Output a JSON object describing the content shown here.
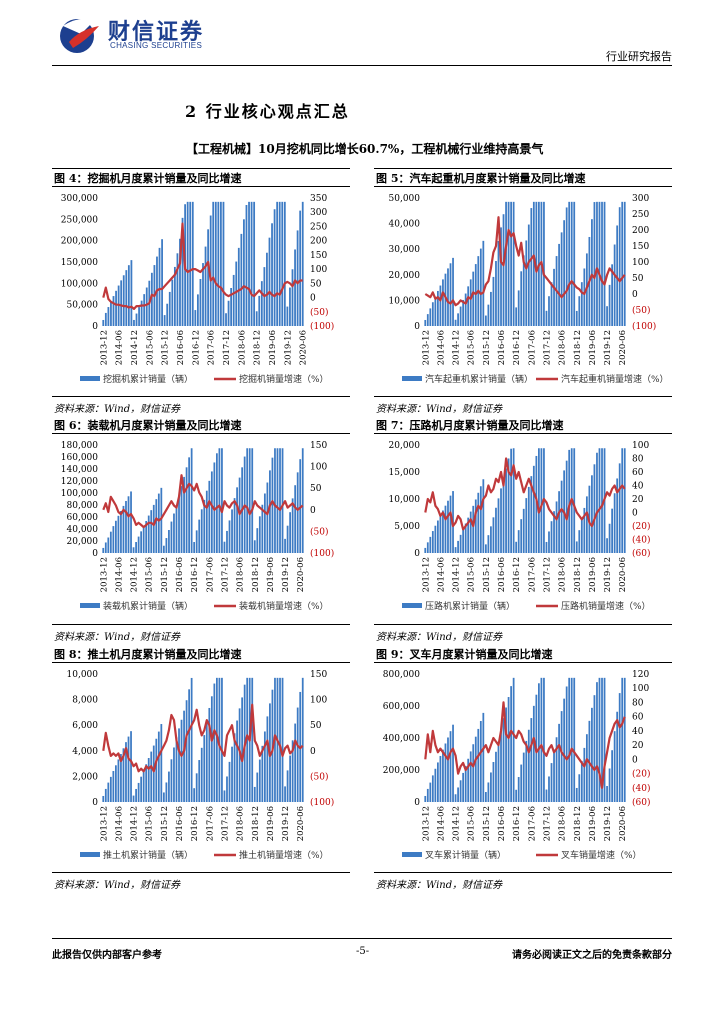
{
  "header": {
    "logo_cn": "财信证券",
    "logo_en": "CHASING SECURITIES",
    "report_type": "行业研究报告"
  },
  "section_title": "2 行业核心观点汇总",
  "headline": "【工程机械】10月挖机同比增长60.7%，工程机械行业维持高景气",
  "colors": {
    "bar": "#3d7bc4",
    "line": "#c0393b",
    "brand": "#1d3f8f"
  },
  "chart_data": [
    {
      "type": "bar+line",
      "title": "图 4：挖掘机月度累计销量及同比增速",
      "source": "资料来源：Wind，财信证券",
      "left_ticks": [
        "300,000",
        "250,000",
        "200,000",
        "150,000",
        "100,000",
        "50,000",
        "0"
      ],
      "right_ticks": [
        "350",
        "300",
        "250",
        "200",
        "150",
        "100",
        "50",
        "0",
        "(50)",
        "(100)"
      ],
      "ylim_left": [
        0,
        300000
      ],
      "ylim_right": [
        -100,
        350
      ],
      "x_ticks": [
        "2013-12",
        "2014-06",
        "2014-12",
        "2015-06",
        "2015-12",
        "2016-06",
        "2016-12",
        "2017-06",
        "2017-12",
        "2018-06",
        "2018-12",
        "2019-06",
        "2019-12",
        "2020-06"
      ],
      "legend": [
        "挖掘机累计销量（辆）",
        "挖掘机销量增速（%）"
      ],
      "line_values": [
        0,
        35,
        -5,
        -15,
        -20,
        -25,
        -25,
        -28,
        -30,
        -30,
        -35,
        -32,
        -40,
        -30,
        -30,
        -28,
        -28,
        -25,
        -20,
        10,
        5,
        25,
        30,
        30,
        40,
        50,
        60,
        70,
        80,
        100,
        120,
        260,
        100,
        90,
        95,
        100,
        100,
        95,
        90,
        100,
        110,
        125,
        60,
        70,
        50,
        40,
        35,
        20,
        10,
        5,
        10,
        15,
        20,
        25,
        30,
        40,
        35,
        30,
        10,
        5,
        15,
        25,
        15,
        5,
        10,
        20,
        10,
        5,
        15,
        10,
        30,
        50,
        55,
        50,
        40,
        60,
        50,
        60,
        60
      ]
    },
    {
      "type": "bar+line",
      "title": "图 5：汽车起重机月度累计销量及同比增速",
      "source": "资料来源：Wind，财信证券",
      "left_ticks": [
        "50,000",
        "40,000",
        "30,000",
        "20,000",
        "10,000",
        "0"
      ],
      "right_ticks": [
        "300",
        "250",
        "200",
        "150",
        "100",
        "50",
        "0",
        "(50)",
        "(100)"
      ],
      "ylim_left": [
        0,
        50000
      ],
      "ylim_right": [
        -100,
        300
      ],
      "x_ticks": [
        "2013-12",
        "2014-06",
        "2014-12",
        "2015-06",
        "2015-12",
        "2016-06",
        "2016-12",
        "2017-06",
        "2017-12",
        "2018-06",
        "2018-12",
        "2019-06",
        "2019-12",
        "2020-06"
      ],
      "legend": [
        "汽车起重机累计销量（辆）",
        "汽车起重机销量增速（%）"
      ],
      "line_values": [
        0,
        -5,
        -10,
        5,
        -15,
        -10,
        -20,
        5,
        -10,
        -25,
        -30,
        -20,
        -35,
        -30,
        -20,
        -25,
        -30,
        -10,
        -15,
        5,
        0,
        10,
        0,
        5,
        30,
        40,
        80,
        130,
        150,
        240,
        100,
        90,
        150,
        200,
        180,
        190,
        150,
        120,
        160,
        100,
        80,
        100,
        110,
        120,
        70,
        90,
        100,
        60,
        50,
        40,
        30,
        20,
        10,
        0,
        -10,
        0,
        10,
        30,
        40,
        30,
        20,
        15,
        5,
        0,
        20,
        40,
        60,
        50,
        80,
        60,
        40,
        30,
        60,
        80,
        70,
        60,
        50,
        40,
        50,
        60
      ]
    },
    {
      "type": "bar+line",
      "title": "图 6：装载机月度累计销量及同比增速",
      "source": "资料来源：Wind，财信证券",
      "left_ticks": [
        "180,000",
        "160,000",
        "140,000",
        "120,000",
        "100,000",
        "80,000",
        "60,000",
        "40,000",
        "20,000",
        "0"
      ],
      "right_ticks": [
        "150",
        "100",
        "50",
        "0",
        "(50)",
        "(100)"
      ],
      "ylim_left": [
        0,
        180000
      ],
      "ylim_right": [
        -100,
        150
      ],
      "x_ticks": [
        "2013-12",
        "2014-06",
        "2014-12",
        "2015-06",
        "2015-12",
        "2016-06",
        "2016-12",
        "2017-06",
        "2017-12",
        "2018-06",
        "2018-12",
        "2019-06",
        "2019-12",
        "2020-06"
      ],
      "legend": [
        "装载机累计销量（辆）",
        "装载机销量增速（%）"
      ],
      "line_values": [
        0,
        15,
        -5,
        30,
        20,
        10,
        -5,
        -10,
        0,
        -5,
        -15,
        -10,
        -20,
        -35,
        -30,
        -35,
        -40,
        -35,
        -30,
        -30,
        -35,
        -20,
        -25,
        -20,
        -10,
        0,
        10,
        20,
        10,
        5,
        30,
        80,
        40,
        50,
        60,
        55,
        45,
        60,
        40,
        30,
        10,
        5,
        20,
        10,
        0,
        5,
        10,
        -5,
        20,
        10,
        5,
        15,
        20,
        10,
        -10,
        0,
        10,
        5,
        -10,
        0,
        20,
        10,
        5,
        0,
        -5,
        -10,
        10,
        20,
        10,
        5,
        0,
        10,
        20,
        5,
        10,
        15,
        5,
        0,
        5,
        10
      ]
    },
    {
      "type": "bar+line",
      "title": "图 7：压路机月度累计销量及同比增速",
      "source": "资料来源：Wind，财信证券",
      "left_ticks": [
        "20,000",
        "15,000",
        "10,000",
        "5,000",
        "0"
      ],
      "right_ticks": [
        "100",
        "80",
        "60",
        "40",
        "20",
        "0",
        "(20)",
        "(40)",
        "(60)"
      ],
      "ylim_left": [
        0,
        20000
      ],
      "ylim_right": [
        -60,
        100
      ],
      "x_ticks": [
        "2013-12",
        "2014-06",
        "2014-12",
        "2015-06",
        "2015-12",
        "2016-06",
        "2016-12",
        "2017-06",
        "2017-12",
        "2018-06",
        "2018-12",
        "2019-06",
        "2019-12",
        "2020-06"
      ],
      "legend": [
        "压路机累计销量（辆）",
        "压路机销量增速（%）"
      ],
      "line_values": [
        0,
        20,
        15,
        30,
        10,
        5,
        -5,
        0,
        -10,
        -5,
        0,
        -20,
        -15,
        -5,
        -10,
        -25,
        -20,
        -15,
        -10,
        -20,
        0,
        10,
        5,
        20,
        25,
        40,
        30,
        35,
        50,
        45,
        60,
        40,
        80,
        60,
        55,
        70,
        50,
        60,
        45,
        30,
        40,
        50,
        40,
        30,
        20,
        0,
        10,
        20,
        15,
        5,
        0,
        -5,
        -10,
        0,
        5,
        0,
        -10,
        10,
        20,
        10,
        0,
        -5,
        -10,
        -5,
        0,
        -15,
        -20,
        -10,
        0,
        5,
        10,
        20,
        30,
        25,
        35,
        40,
        30,
        35,
        40,
        35
      ]
    },
    {
      "type": "bar+line",
      "title": "图 8：推土机月度累计销量及同比增速",
      "source": "资料来源：Wind，财信证券",
      "left_ticks": [
        "10,000",
        "8,000",
        "6,000",
        "4,000",
        "2,000",
        "0"
      ],
      "right_ticks": [
        "150",
        "100",
        "50",
        "0",
        "(50)",
        "(100)"
      ],
      "ylim_left": [
        0,
        10000
      ],
      "ylim_right": [
        -100,
        150
      ],
      "x_ticks": [
        "2013-12",
        "2014-06",
        "2014-12",
        "2015-06",
        "2015-12",
        "2016-06",
        "2016-12",
        "2017-06",
        "2017-12",
        "2018-06",
        "2018-12",
        "2019-06",
        "2019-12",
        "2020-06"
      ],
      "legend": [
        "推土机累计销量（辆）",
        "推土机销量增速（%）"
      ],
      "line_values": [
        0,
        35,
        10,
        -10,
        -5,
        -10,
        -5,
        -20,
        -10,
        5,
        -15,
        -20,
        -30,
        -25,
        -40,
        -35,
        -40,
        -30,
        -35,
        -30,
        -40,
        -20,
        -10,
        0,
        10,
        20,
        40,
        70,
        60,
        20,
        0,
        -10,
        0,
        30,
        40,
        50,
        60,
        80,
        50,
        30,
        40,
        60,
        50,
        20,
        40,
        30,
        10,
        0,
        -10,
        30,
        40,
        50,
        20,
        10,
        0,
        -20,
        10,
        30,
        20,
        90,
        20,
        10,
        -10,
        0,
        10,
        20,
        -10,
        0,
        30,
        20,
        10,
        -10,
        5,
        10,
        -5,
        0,
        20,
        10,
        5,
        10
      ]
    },
    {
      "type": "bar+line",
      "title": "图 9：叉车月度累计销量及同比增速",
      "source": "资料来源：Wind，财信证券",
      "left_ticks": [
        "800,000",
        "600,000",
        "400,000",
        "200,000",
        "0"
      ],
      "right_ticks": [
        "120",
        "100",
        "80",
        "60",
        "40",
        "20",
        "0",
        "(20)",
        "(40)",
        "(60)"
      ],
      "ylim_left": [
        0,
        800000
      ],
      "ylim_right": [
        -60,
        120
      ],
      "x_ticks": [
        "2013-12",
        "2014-06",
        "2014-12",
        "2015-06",
        "2015-12",
        "2016-06",
        "2016-12",
        "2017-06",
        "2017-12",
        "2018-06",
        "2018-12",
        "2019-06",
        "2019-12",
        "2020-06"
      ],
      "legend": [
        "叉车累计销量（辆）",
        "叉车销量增速（%）"
      ],
      "line_values": [
        0,
        35,
        10,
        40,
        20,
        10,
        15,
        10,
        5,
        0,
        10,
        15,
        5,
        -20,
        -10,
        -5,
        -15,
        -10,
        -5,
        -10,
        0,
        5,
        10,
        15,
        20,
        10,
        20,
        30,
        25,
        20,
        40,
        80,
        35,
        30,
        40,
        35,
        30,
        40,
        35,
        25,
        20,
        10,
        20,
        30,
        10,
        15,
        20,
        10,
        5,
        15,
        20,
        10,
        15,
        20,
        10,
        5,
        0,
        5,
        15,
        10,
        5,
        0,
        -5,
        -10,
        0,
        -5,
        -10,
        -15,
        -10,
        -20,
        -40,
        -10,
        10,
        30,
        40,
        50,
        55,
        45,
        50,
        60
      ]
    }
  ],
  "footer": {
    "left": "此报告仅供内部客户参考",
    "page": "-5-",
    "right": "请务必阅读正文之后的免责条款部分"
  }
}
